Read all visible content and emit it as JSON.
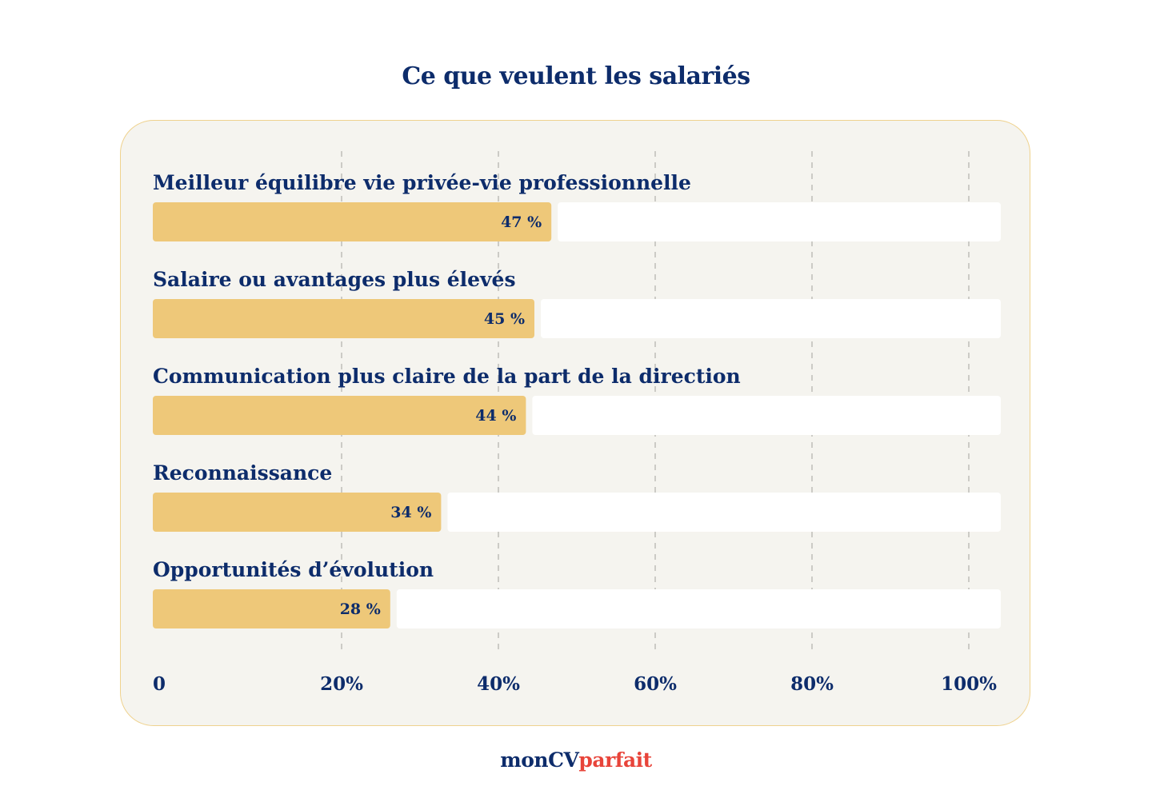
{
  "colors": {
    "text": "#0d2c6b",
    "bar": "#eec879",
    "track": "#ffffff",
    "panel_bg": "#f5f4ef",
    "panel_border": "#efd28e",
    "grid": "#b5b5b0",
    "brand_accent": "#e8443a"
  },
  "chart_data": {
    "type": "bar",
    "orientation": "horizontal",
    "title": "Ce que veulent les salariés",
    "categories": [
      "Meilleur équilibre vie privée-vie professionnelle",
      "Salaire ou avantages plus élevés",
      "Communication plus claire de la part de la direction",
      "Reconnaissance",
      "Opportunités d’évolution"
    ],
    "values": [
      47,
      45,
      44,
      34,
      28
    ],
    "value_labels": [
      "47 %",
      "45 %",
      "44 %",
      "34 %",
      "28 %"
    ],
    "xlim": [
      0,
      100
    ],
    "xticks": [
      0,
      20,
      40,
      60,
      80,
      100
    ],
    "xtick_labels": [
      "0",
      "20%",
      "40%",
      "60%",
      "80%",
      "100%"
    ],
    "grid": true,
    "xlabel": "",
    "ylabel": ""
  },
  "footer": {
    "brand_part1": "monCV",
    "brand_part2": "parfait"
  }
}
